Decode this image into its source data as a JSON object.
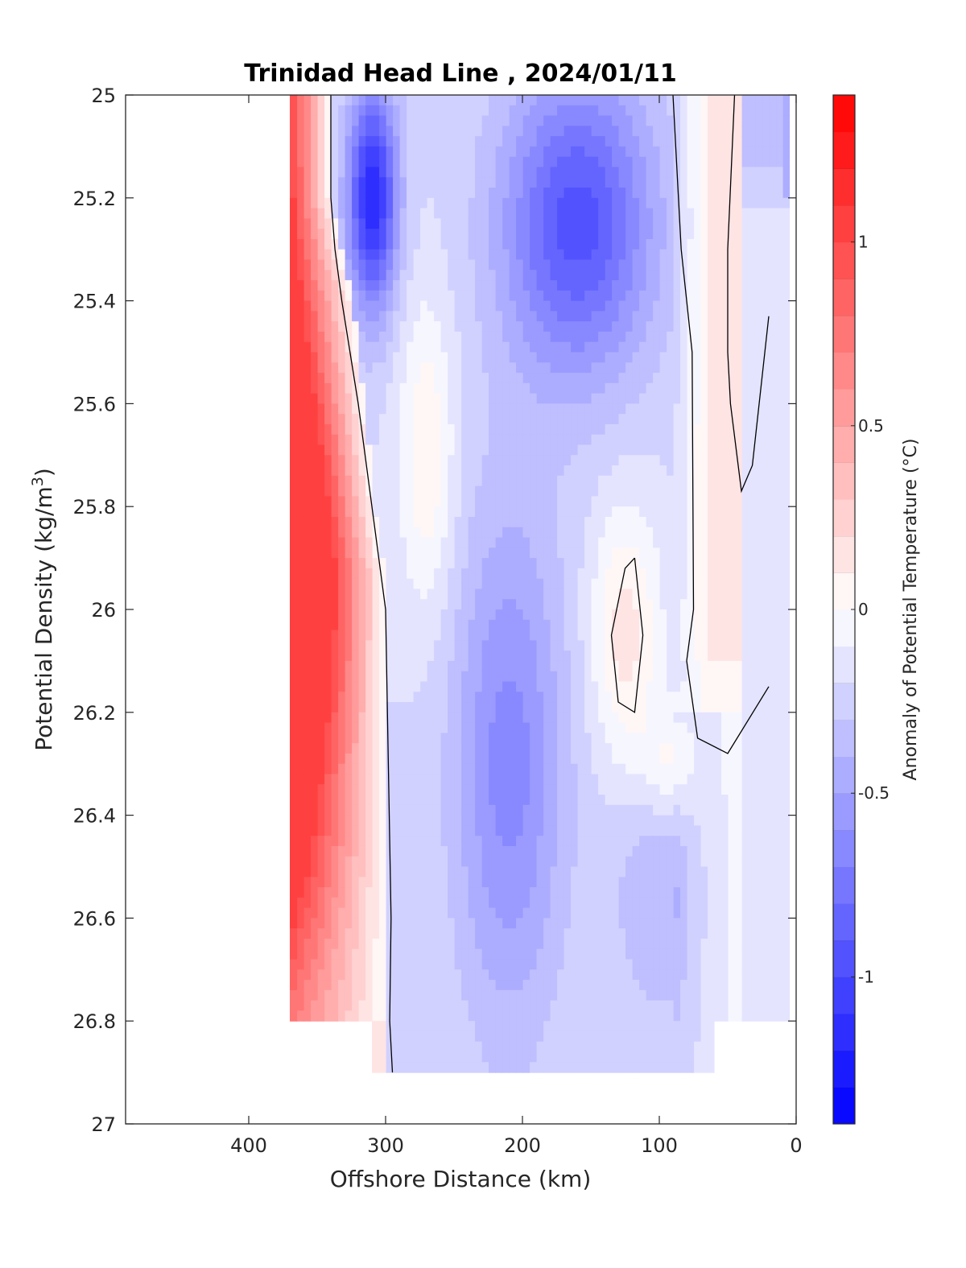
{
  "chart_data": {
    "type": "heatmap",
    "subtype": "filled-contour",
    "title": "Trinidad Head Line , 2024/01/11",
    "xlabel": "Offshore Distance (km)",
    "ylabel_main": "Potential Density (kg/m",
    "ylabel_sup": "3",
    "ylabel_tail": ")",
    "xlim": [
      490,
      0
    ],
    "x_reversed": true,
    "ylim": [
      25,
      27
    ],
    "y_reversed": true,
    "x_ticks": [
      400,
      300,
      200,
      100,
      0
    ],
    "y_ticks": [
      25,
      25.2,
      25.4,
      25.6,
      25.8,
      26,
      26.2,
      26.4,
      26.6,
      26.8,
      27
    ],
    "y_tick_labels": [
      "25",
      "25.2",
      "25.4",
      "25.6",
      "25.8",
      "26",
      "26.2",
      "26.4",
      "26.6",
      "26.8",
      "27"
    ],
    "x": [
      370,
      345,
      320,
      300,
      280,
      260,
      240,
      220,
      200,
      180,
      160,
      140,
      120,
      100,
      80,
      60,
      40,
      20,
      10
    ],
    "y": [
      25.0,
      25.1,
      25.2,
      25.3,
      25.4,
      25.5,
      25.6,
      25.7,
      25.8,
      25.9,
      26.0,
      26.1,
      26.2,
      26.3,
      26.4,
      26.5,
      26.6,
      26.7,
      26.8,
      26.9
    ],
    "colorbar": {
      "label": "Anomaly of Potential Temperature (°C)",
      "range": [
        -1.4,
        1.4
      ],
      "step": 0.1,
      "ticks": [
        1,
        0.5,
        0,
        -0.5,
        -1
      ],
      "tick_labels": [
        "1",
        "0.5",
        "0",
        "-0.5",
        "-1"
      ],
      "colormap": "blue-white-red",
      "neg_color": "#0000ff",
      "pos_color": "#ff0000"
    },
    "contour_levels": [
      0
    ],
    "contour_color": "#000000"
  }
}
